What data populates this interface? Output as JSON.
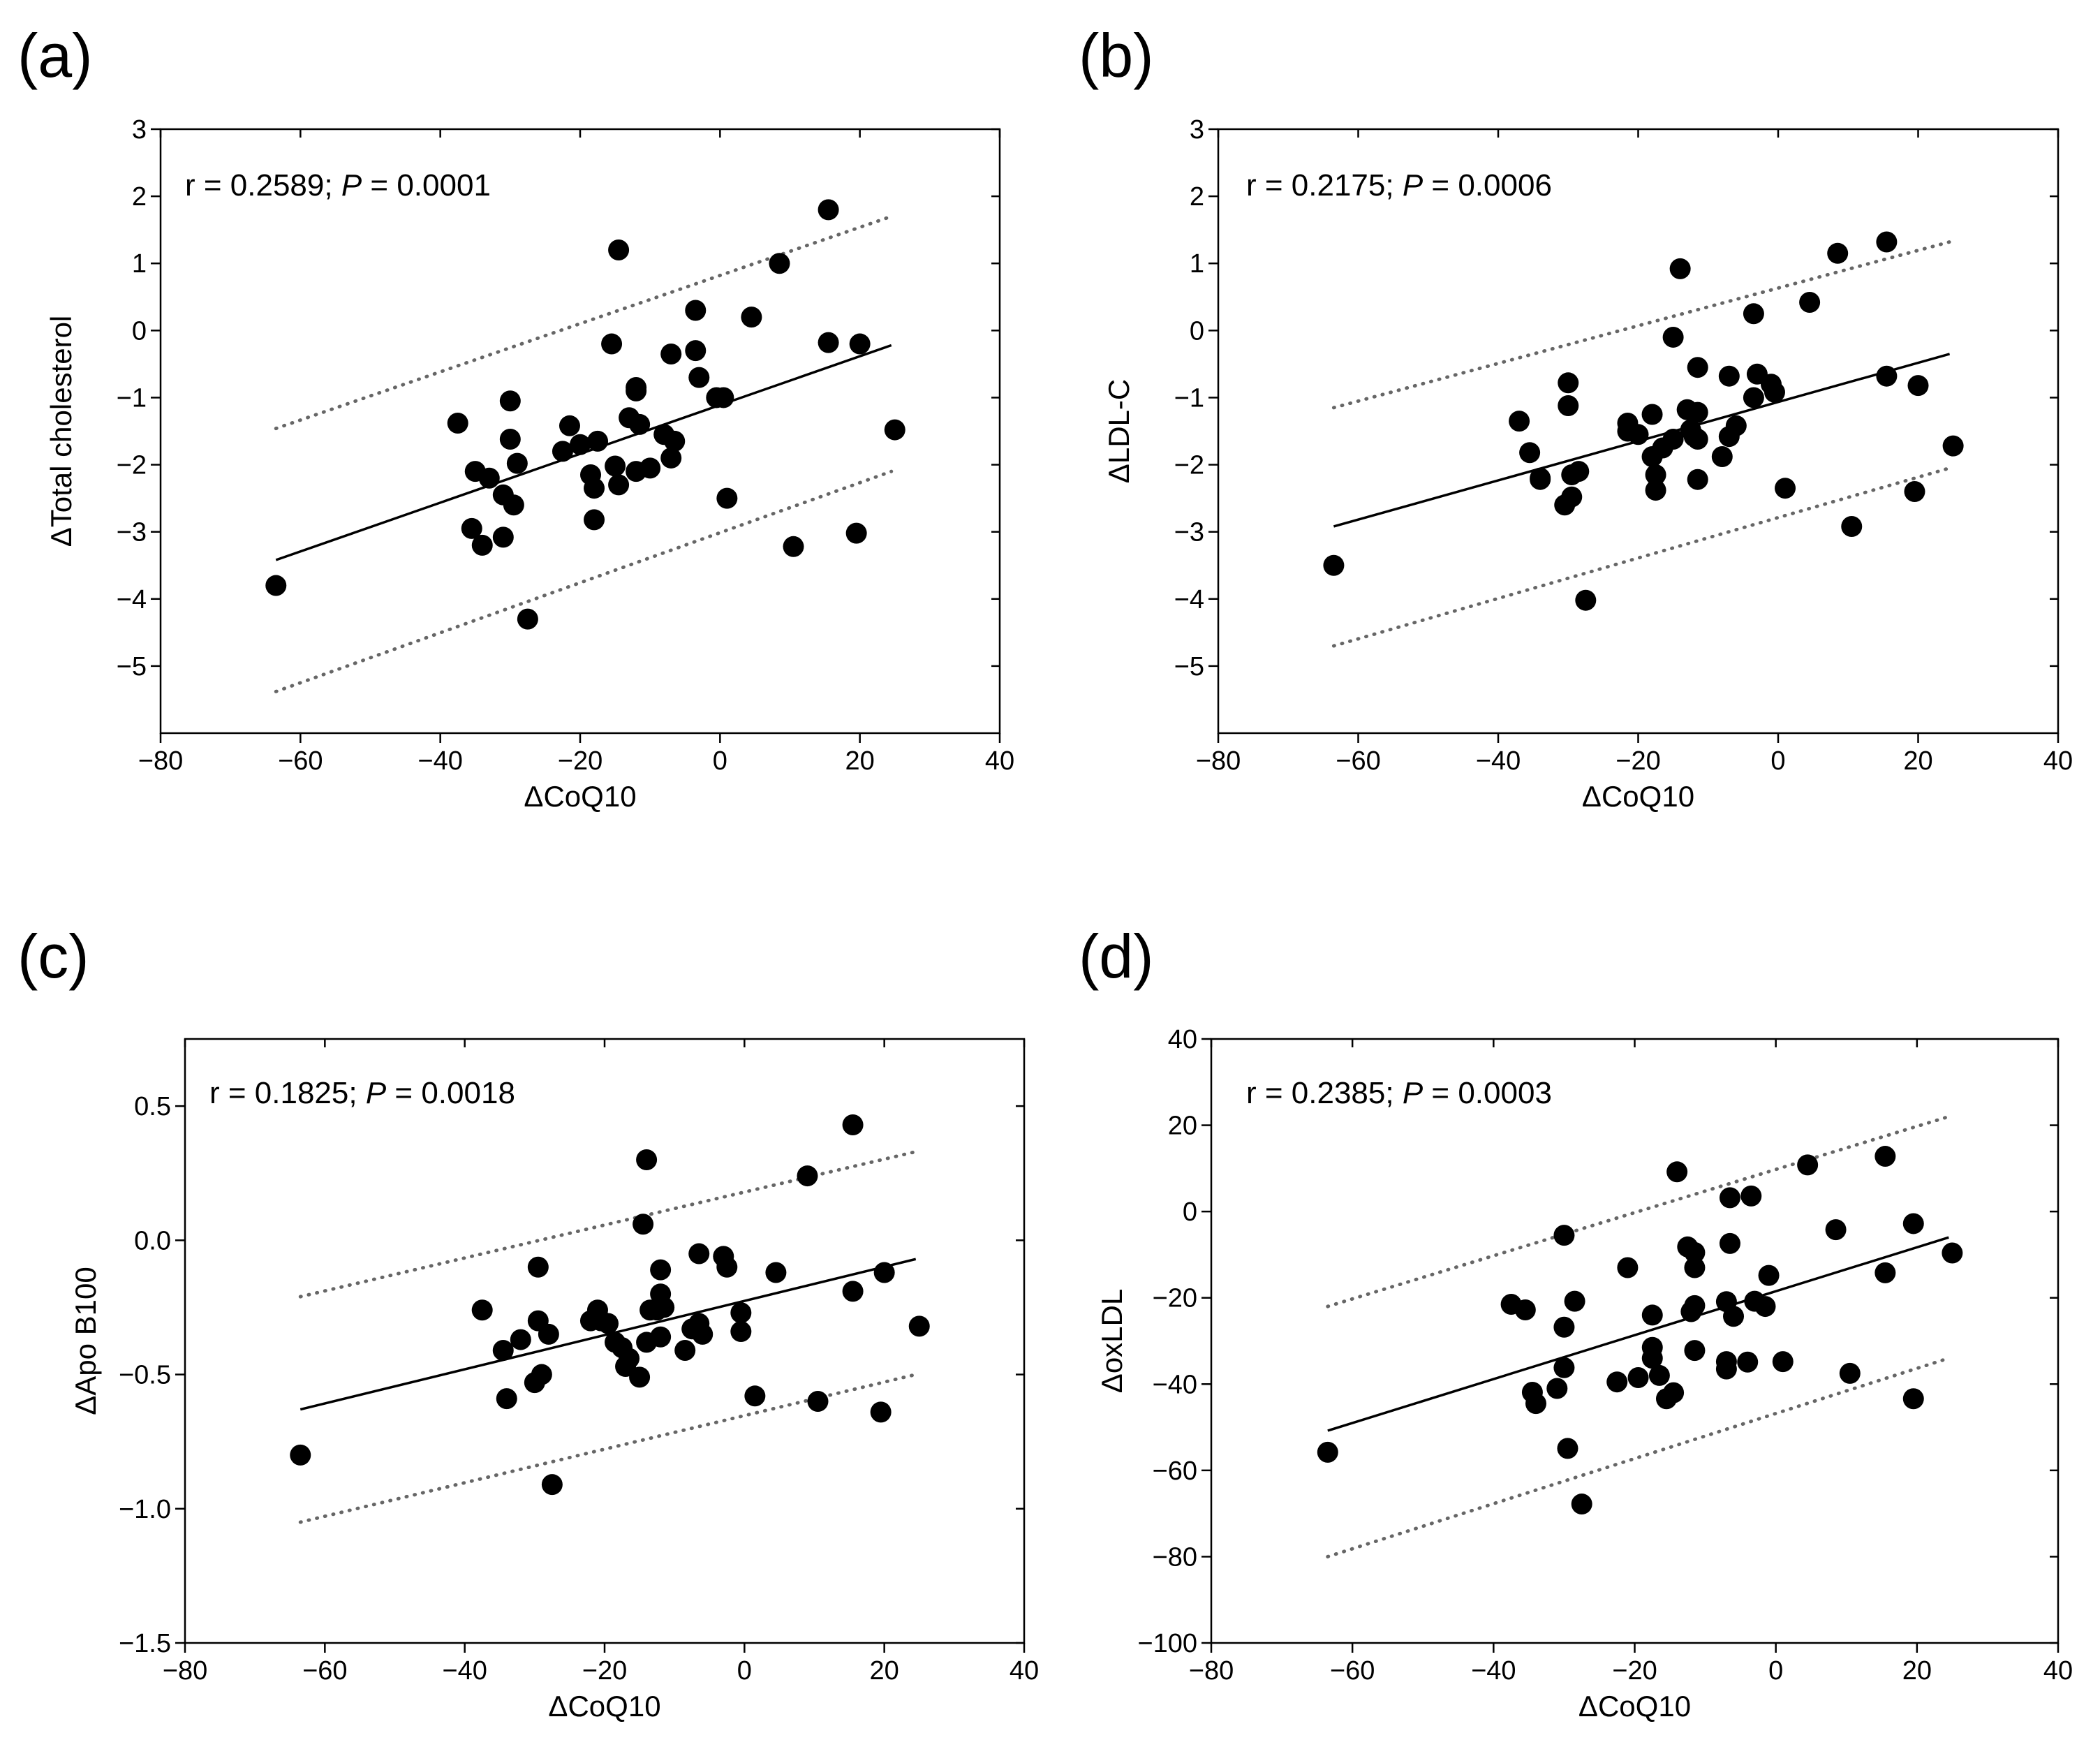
{
  "chart_data": [
    {
      "type": "scatter",
      "panel": "(a)",
      "xlabel": "ΔCoQ10",
      "ylabel": "ΔTotal cholesterol",
      "xlim": [
        -80,
        40
      ],
      "ylim": [
        -6,
        3
      ],
      "xticks": [
        -80,
        -60,
        -40,
        -20,
        0,
        20,
        40
      ],
      "xtick_labels": [
        "−80",
        "−60",
        "−40",
        "−20",
        "0",
        "20",
        "40"
      ],
      "yticks": [
        3,
        2,
        1,
        0,
        -1,
        -2,
        -3,
        -4,
        -5
      ],
      "ytick_labels": [
        "3",
        "2",
        "1",
        "0",
        "−1",
        "−2",
        "−3",
        "−4",
        "−5"
      ],
      "annotation": {
        "r_text": "r = 0.2589; ",
        "p_symbol": "P",
        "p_text": " = 0.0001"
      },
      "fit": {
        "x": [
          -63.5,
          24.5
        ],
        "y": [
          -3.42,
          -0.22
        ]
      },
      "ci_upper": {
        "x": [
          -63.5,
          24.5
        ],
        "y": [
          -1.46,
          1.7
        ]
      },
      "ci_lower": {
        "x": [
          -63.5,
          24.5
        ],
        "y": [
          -5.38,
          -2.1
        ]
      },
      "points": {
        "x": [
          -63.5,
          15.5,
          -14.5,
          8.5,
          4.5,
          -3.5,
          15.5,
          20,
          -15.5,
          -7,
          -3.5,
          -3,
          -12,
          -0.5,
          0.5,
          -12,
          -30,
          -37.5,
          -21.5,
          25,
          -20,
          -13,
          -11.5,
          -8,
          -6.5,
          -7,
          -17.5,
          -22.5,
          -30,
          -29,
          -35,
          -33,
          -15,
          -18.5,
          -10,
          -12,
          -14.5,
          -18,
          -31,
          -29.5,
          -18,
          1,
          -35.5,
          -34,
          -31,
          10.5,
          19.5,
          -27.5
        ],
        "y": [
          -3.8,
          1.8,
          1.2,
          1.0,
          0.2,
          0.3,
          -0.18,
          -0.2,
          -0.2,
          -0.35,
          -0.3,
          -0.7,
          -0.85,
          -1.0,
          -1.0,
          -0.9,
          -1.05,
          -1.38,
          -1.42,
          -1.48,
          -1.7,
          -1.3,
          -1.4,
          -1.55,
          -1.65,
          -1.9,
          -1.65,
          -1.8,
          -1.62,
          -1.98,
          -2.1,
          -2.2,
          -2.02,
          -2.15,
          -2.05,
          -2.1,
          -2.3,
          -2.35,
          -2.45,
          -2.6,
          -2.82,
          -2.5,
          -2.95,
          -3.2,
          -3.08,
          -3.22,
          -3.02,
          -4.3
        ]
      }
    },
    {
      "type": "scatter",
      "panel": "(b)",
      "xlabel": "ΔCoQ10",
      "ylabel": "ΔLDL-C",
      "xlim": [
        -80,
        40
      ],
      "ylim": [
        -6,
        3
      ],
      "xticks": [
        -80,
        -60,
        -40,
        -20,
        0,
        20,
        40
      ],
      "xtick_labels": [
        "−80",
        "−60",
        "−40",
        "−20",
        "0",
        "20",
        "40"
      ],
      "yticks": [
        3,
        2,
        1,
        0,
        -1,
        -2,
        -3,
        -4,
        -5
      ],
      "ytick_labels": [
        "3",
        "2",
        "1",
        "0",
        "−1",
        "−2",
        "−3",
        "−4",
        "−5"
      ],
      "annotation": {
        "r_text": "r = 0.2175; ",
        "p_symbol": "P",
        "p_text": " = 0.0006"
      },
      "fit": {
        "x": [
          -63.5,
          24.5
        ],
        "y": [
          -2.92,
          -0.35
        ]
      },
      "ci_upper": {
        "x": [
          -63.5,
          24.5
        ],
        "y": [
          -1.15,
          1.32
        ]
      },
      "ci_lower": {
        "x": [
          -63.5,
          24.5
        ],
        "y": [
          -4.7,
          -2.05
        ]
      },
      "points": {
        "x": [
          -63.5,
          15.5,
          8.5,
          -14,
          4.5,
          -3.5,
          -15,
          -11.5,
          -7,
          -3,
          -1,
          -0.5,
          -3.5,
          -30,
          -30,
          -37,
          -11.5,
          -13,
          -6,
          -21.5,
          -20,
          -18,
          -12.5,
          -11.5,
          -15,
          -16.5,
          -35.5,
          -7,
          -34,
          -18,
          -12,
          -21.5,
          -8,
          -29.5,
          -28.5,
          -17.5,
          -11.5,
          -34,
          -29.5,
          -17.5,
          -30.5,
          1,
          25,
          15.5,
          20,
          10.5,
          19.5,
          -27.5
        ],
        "y": [
          -3.5,
          1.32,
          1.15,
          0.92,
          0.42,
          0.25,
          -0.1,
          -0.55,
          -0.68,
          -0.65,
          -0.8,
          -0.92,
          -1.0,
          -0.78,
          -1.12,
          -1.35,
          -1.22,
          -1.18,
          -1.42,
          -1.5,
          -1.55,
          -1.25,
          -1.48,
          -1.62,
          -1.62,
          -1.75,
          -1.82,
          -1.58,
          -2.22,
          -1.88,
          -1.58,
          -1.38,
          -1.88,
          -2.15,
          -2.1,
          -2.15,
          -2.22,
          -2.2,
          -2.48,
          -2.38,
          -2.6,
          -2.35,
          -1.72,
          -0.68,
          -0.82,
          -2.92,
          -2.4,
          -4.02
        ]
      }
    },
    {
      "type": "scatter",
      "panel": "(c)",
      "xlabel": "ΔCoQ10",
      "ylabel": "ΔApo B100",
      "xlim": [
        -80,
        40
      ],
      "ylim": [
        -1.5,
        0.75
      ],
      "xticks": [
        -80,
        -60,
        -40,
        -20,
        0,
        20,
        40
      ],
      "xtick_labels": [
        "−80",
        "−60",
        "−40",
        "−20",
        "0",
        "20",
        "40"
      ],
      "yticks": [
        0.5,
        0.0,
        -0.5,
        -1.0,
        -1.5
      ],
      "ytick_labels": [
        "0.5",
        "0.0",
        "−0.5",
        "−1.0",
        "−1.5"
      ],
      "annotation": {
        "r_text": "r = 0.1825; ",
        "p_symbol": "P",
        "p_text": " = 0.0018"
      },
      "fit": {
        "x": [
          -63.5,
          24.5
        ],
        "y": [
          -0.63,
          -0.07
        ]
      },
      "ci_upper": {
        "x": [
          -63.5,
          24.5
        ],
        "y": [
          -0.21,
          0.33
        ]
      },
      "ci_lower": {
        "x": [
          -63.5,
          24.5
        ],
        "y": [
          -1.05,
          -0.5
        ]
      },
      "points": {
        "x": [
          -63.5,
          15.5,
          -14,
          9,
          -14.5,
          -6.5,
          -3,
          -2.5,
          4.5,
          20,
          -12,
          15.5,
          -37.5,
          -12,
          -21,
          -20.5,
          -12.5,
          -29.5,
          -22,
          -29.5,
          -19.5,
          -13.5,
          -11.5,
          -17.5,
          -32,
          -28,
          -18.5,
          -6.5,
          -16.5,
          -14,
          -12,
          -7.5,
          -6,
          -0.5,
          -0.5,
          -8.5,
          -29,
          -15,
          -17,
          -34.5,
          -30,
          -34,
          -27.5,
          1.5,
          10.5,
          19.5,
          25
        ],
        "y": [
          -0.8,
          0.43,
          0.3,
          0.24,
          0.06,
          -0.05,
          -0.06,
          -0.1,
          -0.12,
          -0.12,
          -0.11,
          -0.19,
          -0.26,
          -0.2,
          -0.26,
          -0.3,
          -0.26,
          -0.1,
          -0.3,
          -0.3,
          -0.31,
          -0.26,
          -0.25,
          -0.4,
          -0.37,
          -0.35,
          -0.38,
          -0.31,
          -0.44,
          -0.38,
          -0.36,
          -0.33,
          -0.35,
          -0.27,
          -0.34,
          -0.41,
          -0.5,
          -0.51,
          -0.47,
          -0.41,
          -0.53,
          -0.59,
          -0.91,
          -0.58,
          -0.6,
          -0.64,
          -0.32
        ]
      }
    },
    {
      "type": "scatter",
      "panel": "(d)",
      "xlabel": "ΔCoQ10",
      "ylabel": "ΔoxLDL",
      "xlim": [
        -80,
        40
      ],
      "ylim": [
        -100,
        40
      ],
      "xticks": [
        -80,
        -60,
        -40,
        -20,
        0,
        20,
        40
      ],
      "xtick_labels": [
        "−80",
        "−60",
        "−40",
        "−20",
        "0",
        "20",
        "40"
      ],
      "yticks": [
        40,
        20,
        0,
        -20,
        -40,
        -60,
        -80,
        -100
      ],
      "ytick_labels": [
        "40",
        "20",
        "0",
        "−20",
        "−40",
        "−60",
        "−80",
        "−100"
      ],
      "annotation": {
        "r_text": "r = 0.2385; ",
        "p_symbol": "P",
        "p_text": " = 0.0003"
      },
      "fit": {
        "x": [
          -63.5,
          24.5
        ],
        "y": [
          -50.8,
          -6
        ]
      },
      "ci_upper": {
        "x": [
          -63.5,
          24.5
        ],
        "y": [
          -22,
          22
        ]
      },
      "ci_lower": {
        "x": [
          -63.5,
          24.5
        ],
        "y": [
          -80,
          -34
        ]
      },
      "points": {
        "x": [
          -63.5,
          15.5,
          4.5,
          -14,
          -3.5,
          -6.5,
          8.5,
          19.5,
          -30,
          -11.5,
          -12.5,
          -6.5,
          -1,
          15.5,
          -21,
          -11.5,
          -37.5,
          -35.5,
          -28.5,
          -7,
          -1.5,
          -6,
          -11.5,
          -17.5,
          -30,
          -3,
          -12,
          -17.5,
          -7,
          -11.5,
          -30,
          -17.5,
          -4,
          1,
          10.5,
          25,
          -19.5,
          -22.5,
          -16.5,
          -34.5,
          -31,
          -14.5,
          -7,
          -15.5,
          -34,
          -29.5,
          19.5,
          -27.5
        ],
        "y": [
          -55.8,
          12.8,
          10.8,
          9.2,
          3.6,
          3.2,
          -4.2,
          -2.8,
          -5.5,
          -9.5,
          -8.2,
          -7.4,
          -14.8,
          -14.2,
          -13,
          -13,
          -21.5,
          -22.8,
          -20.8,
          -20.9,
          -22,
          -24.3,
          -21.8,
          -24,
          -26.8,
          -20.8,
          -23.2,
          -31.5,
          -34.8,
          -32.2,
          -36.2,
          -34,
          -34.9,
          -34.8,
          -37.5,
          -9.6,
          -38.5,
          -39.5,
          -38,
          -41.9,
          -41,
          -42,
          -36.5,
          -43.4,
          -44.5,
          -54.9,
          -43.4,
          -67.8
        ]
      }
    }
  ]
}
